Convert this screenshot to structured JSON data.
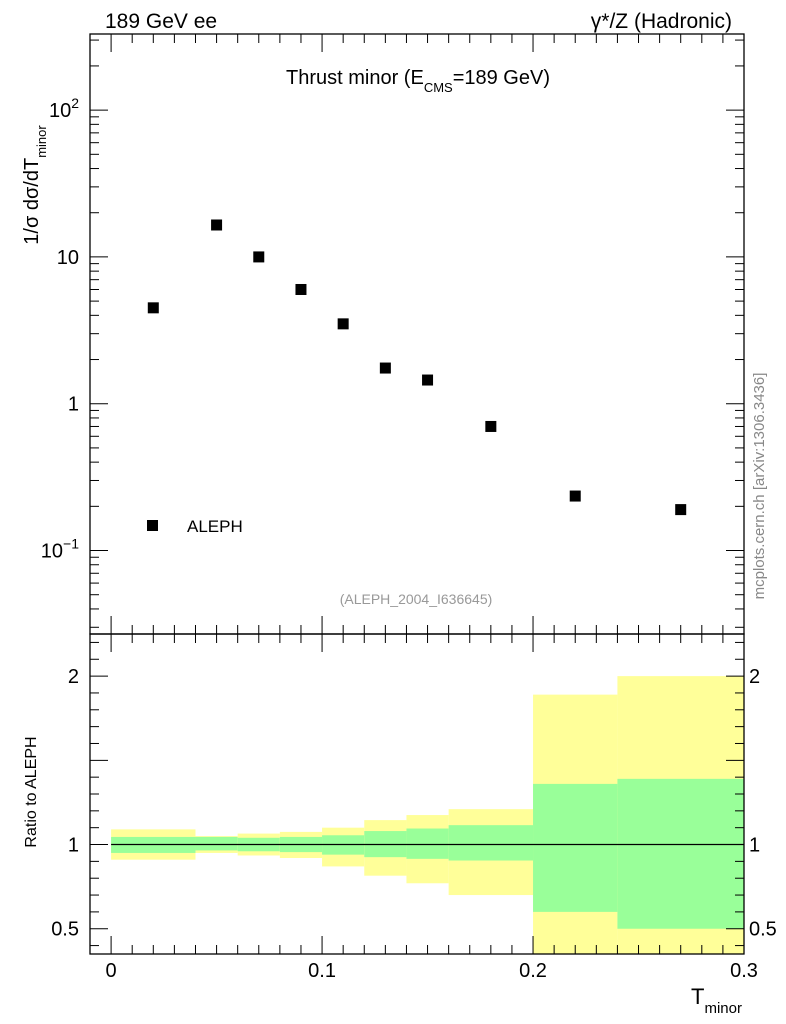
{
  "header": {
    "left": "189 GeV ee",
    "right": "γ*/Z (Hadronic)"
  },
  "watermark": "mcplots.cern.ch [arXiv:1306.3436]",
  "chart_data": [
    {
      "type": "scatter",
      "title": "Thrust minor (E",
      "title_sub": "CMS",
      "title_tail": "=189 GeV)",
      "ylabel": "1/σ  dσ/dT",
      "ylabel_sub": "minor",
      "yscale": "log",
      "ylim": [
        0.027,
        330
      ],
      "xlim": [
        -0.01,
        0.3
      ],
      "yticks": [
        {
          "value": 100,
          "base": "10",
          "exp": "2"
        },
        {
          "value": 10,
          "base": "10",
          "exp": ""
        },
        {
          "value": 1,
          "base": "1",
          "exp": ""
        },
        {
          "value": 0.1,
          "base": "10",
          "exp": "−1"
        }
      ],
      "series": [
        {
          "name": "ALEPH",
          "x": [
            0.02,
            0.05,
            0.07,
            0.09,
            0.11,
            0.13,
            0.15,
            0.18,
            0.22,
            0.27
          ],
          "y": [
            4.5,
            16.5,
            10.0,
            6.0,
            3.5,
            1.75,
            1.45,
            0.7,
            0.235,
            0.19
          ]
        }
      ],
      "legend": [
        {
          "label": "ALEPH",
          "marker": "square",
          "color": "#000000"
        }
      ],
      "legend_placement": "bottom-left",
      "annotation": "(ALEPH_2004_I636645)"
    },
    {
      "type": "area",
      "ylabel": "Ratio to ALEPH",
      "xlabel": "T",
      "xlabel_sub": "minor",
      "ylim": [
        0.35,
        2.25
      ],
      "xlim": [
        -0.01,
        0.3
      ],
      "reference_line": 1.0,
      "yticks": [
        {
          "value": 2,
          "label": "2"
        },
        {
          "value": 1,
          "label": "1"
        },
        {
          "value": 0.5,
          "label": "0.5"
        }
      ],
      "xticks": [
        {
          "value": 0,
          "label": "0"
        },
        {
          "value": 0.1,
          "label": "0.1"
        },
        {
          "value": 0.2,
          "label": "0.2"
        },
        {
          "value": 0.3,
          "label": "0.3"
        }
      ],
      "bins": [
        0.0,
        0.04,
        0.06,
        0.08,
        0.1,
        0.12,
        0.14,
        0.16,
        0.2,
        0.24,
        0.3
      ],
      "stat_band_lo": [
        0.95,
        0.965,
        0.96,
        0.955,
        0.94,
        0.925,
        0.915,
        0.905,
        0.6,
        0.5
      ],
      "stat_band_hi": [
        1.045,
        1.045,
        1.04,
        1.045,
        1.055,
        1.08,
        1.095,
        1.115,
        1.36,
        1.39
      ],
      "total_band_lo": [
        0.91,
        0.95,
        0.935,
        0.92,
        0.87,
        0.815,
        0.77,
        0.7,
        0.35,
        0.35
      ],
      "total_band_hi": [
        1.09,
        1.05,
        1.065,
        1.075,
        1.1,
        1.145,
        1.175,
        1.21,
        1.89,
        2.0
      ],
      "colors": {
        "stat": "#99ff99",
        "total": "#ffff99",
        "line": "#000000"
      }
    }
  ]
}
